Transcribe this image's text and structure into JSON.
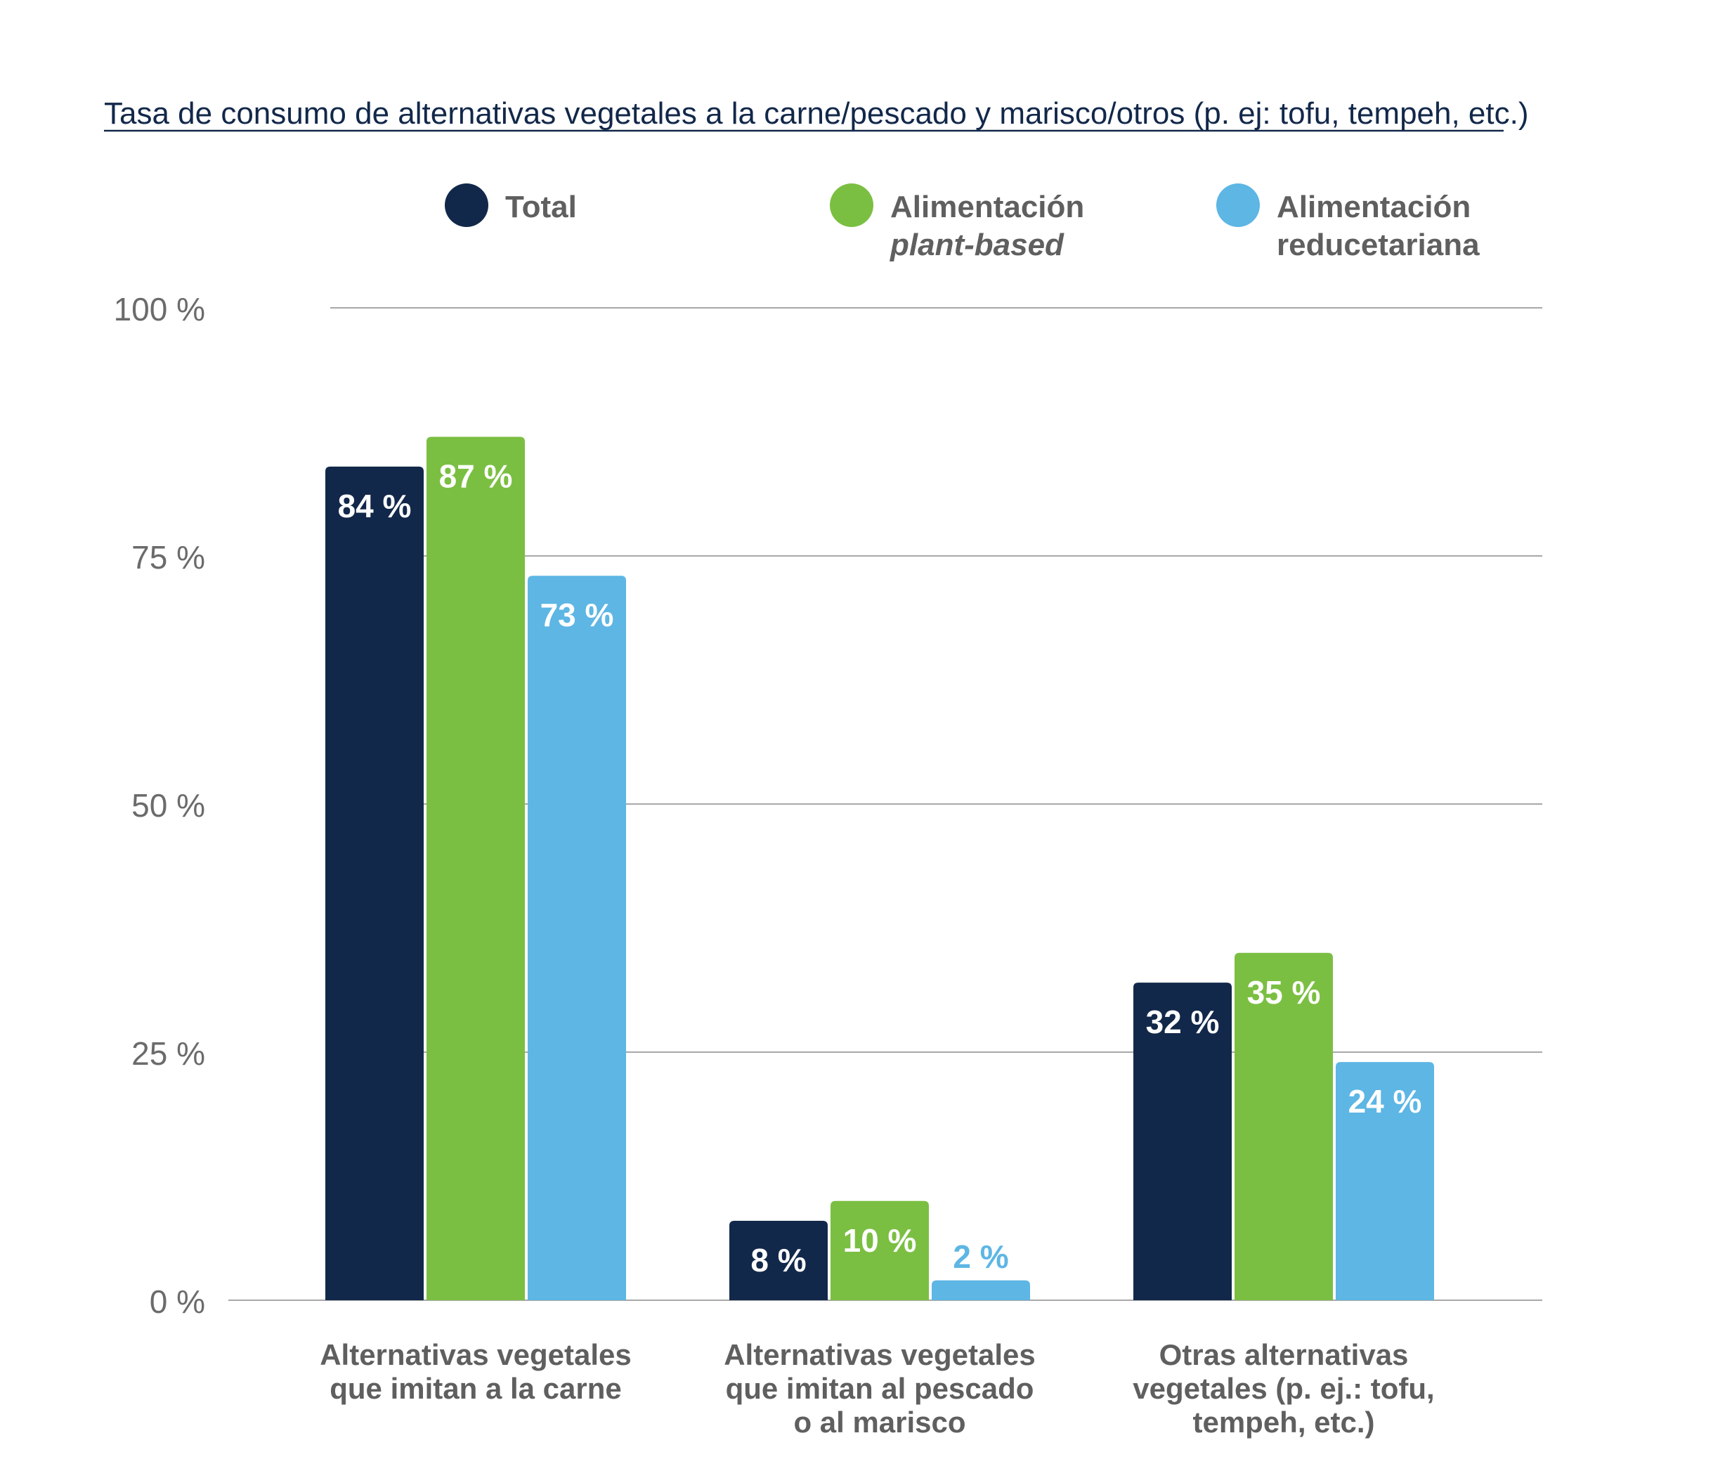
{
  "chart_data": {
    "type": "bar",
    "title": "Tasa de consumo de alternativas vegetales a la carne/pescado y marisco/otros (p. ej: tofu, tempeh, etc.)",
    "categories": [
      [
        "Alternativas vegetales",
        "que imitan a la carne"
      ],
      [
        "Alternativas vegetales",
        "que imitan al pescado",
        "o al marisco"
      ],
      [
        "Otras alternativas",
        "vegetales (p. ej.: tofu,",
        "tempeh, etc.)"
      ]
    ],
    "series": [
      {
        "name": "Total",
        "name_lines": [
          "Total"
        ],
        "color": "#12284a",
        "values": [
          84,
          8,
          32
        ],
        "labels": [
          "84 %",
          "8 %",
          "32 %"
        ]
      },
      {
        "name": "Alimentación plant-based",
        "name_lines": [
          "Alimentación",
          "plant-based"
        ],
        "color": "#7bbf42",
        "values": [
          87,
          10,
          35
        ],
        "labels": [
          "87 %",
          "10 %",
          "35 %"
        ]
      },
      {
        "name": "Alimentación reducetariana",
        "name_lines": [
          "Alimentación",
          "reducetariana"
        ],
        "color": "#5db6e4",
        "values": [
          73,
          2,
          24
        ],
        "labels": [
          "73 %",
          "2 %",
          "24 %"
        ]
      }
    ],
    "ylim": [
      0,
      100
    ],
    "yticks": [
      0,
      25,
      50,
      75,
      100
    ],
    "ytick_labels": [
      "0 %",
      "25 %",
      "50 %",
      "75 %",
      "100 %"
    ],
    "grid": true,
    "legend": "top-center"
  }
}
